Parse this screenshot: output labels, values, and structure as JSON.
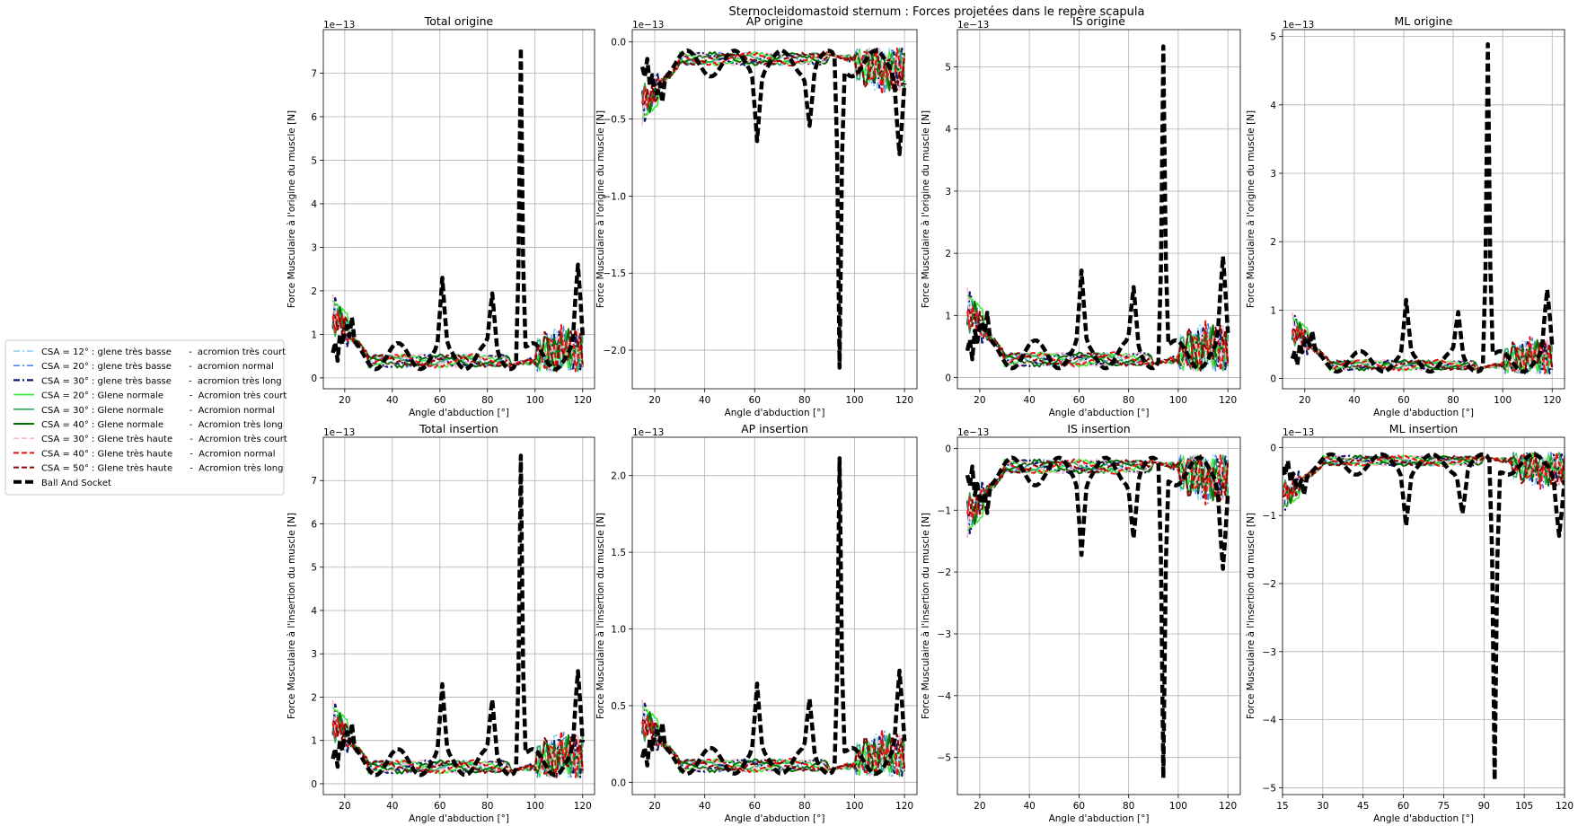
{
  "figure": {
    "suptitle": "Sternocleidomastoid sternum : Forces projetées dans le repère scapula"
  },
  "legend": {
    "placement": "left",
    "entries": [
      {
        "label": "CSA = 12° : glene très basse      -  acromion très court",
        "color": "#87CEFA",
        "dash": "7,3,2,3",
        "width": 1.6
      },
      {
        "label": "CSA = 20° : glene très basse      -  acromion normal",
        "color": "#4F86E0",
        "dash": "7,3,2,3",
        "width": 1.6
      },
      {
        "label": "CSA = 30° : glene très basse      -  acromion très long",
        "color": "#0A1A6E",
        "dash": "7,3,2,3",
        "width": 2.2
      },
      {
        "label": "CSA = 20° : Glene normale         -  Acromion très court",
        "color": "#33EE33",
        "dash": "",
        "width": 1.6
      },
      {
        "label": "CSA = 30° : Glene normale         -  Acromion normal",
        "color": "#2EAA55",
        "dash": "",
        "width": 1.6
      },
      {
        "label": "CSA = 40° : Glene normale         -  Acromion très long",
        "color": "#056B05",
        "dash": "",
        "width": 2.0
      },
      {
        "label": "CSA = 30° : Glene très haute      -  Acromion très court",
        "color": "#FFB6C1",
        "dash": "6,3",
        "width": 1.6
      },
      {
        "label": "CSA = 40° : Glene très haute      -  Acromion normal",
        "color": "#EE1111",
        "dash": "6,3",
        "width": 2.0
      },
      {
        "label": "CSA = 50° : Glene très haute      -  Acromion très long",
        "color": "#8B0000",
        "dash": "6,3",
        "width": 2.0
      },
      {
        "label": "Ball And Socket",
        "color": "#000000",
        "dash": "9,4",
        "width": 4.5
      }
    ]
  },
  "chart_data": [
    {
      "type": "line",
      "title": "Total origine",
      "xlabel": "Angle d'abduction [°]",
      "ylabel": "Force Musculaire à l'origine du muscle [N]",
      "scale_label": "1e−13",
      "xlim": [
        11,
        125
      ],
      "ylim": [
        -0.25,
        8.0
      ],
      "xticks": [
        20,
        40,
        60,
        80,
        100,
        120
      ],
      "yticks": [
        0,
        1,
        2,
        3,
        4,
        5,
        6,
        7
      ],
      "yticklabels": [
        "0",
        "1",
        "2",
        "3",
        "4",
        "5",
        "6",
        "7"
      ],
      "x_range": [
        15,
        120
      ],
      "sign": 1,
      "amp": 1.0,
      "ball_and_socket_peak": 7.6,
      "grid": true
    },
    {
      "type": "line",
      "title": "AP origine",
      "xlabel": "Angle d'abduction [°]",
      "ylabel": "Force Musculaire à l'origine du muscle [N]",
      "scale_label": "1e−13",
      "xlim": [
        11,
        125
      ],
      "ylim": [
        -2.25,
        0.08
      ],
      "xticks": [
        20,
        40,
        60,
        80,
        100,
        120
      ],
      "yticks": [
        0,
        -0.5,
        -1.0,
        -1.5,
        -2.0
      ],
      "yticklabels": [
        "0.0",
        "−0.5",
        "−1.0",
        "−1.5",
        "−2.0"
      ],
      "x_range": [
        15,
        120
      ],
      "sign": -1,
      "amp": 0.28,
      "ball_and_socket_peak": 2.12,
      "grid": true
    },
    {
      "type": "line",
      "title": "IS origine",
      "xlabel": "Angle d'abduction [°]",
      "ylabel": "Force Musculaire à l'origine du muscle [N]",
      "scale_label": "1e−13",
      "xlim": [
        11,
        125
      ],
      "ylim": [
        -0.18,
        5.6
      ],
      "xticks": [
        20,
        40,
        60,
        80,
        100,
        120
      ],
      "yticks": [
        0,
        1,
        2,
        3,
        4,
        5
      ],
      "yticklabels": [
        "0",
        "1",
        "2",
        "3",
        "4",
        "5"
      ],
      "x_range": [
        15,
        120
      ],
      "sign": 1,
      "amp": 0.75,
      "ball_and_socket_peak": 5.35,
      "grid": true
    },
    {
      "type": "line",
      "title": "ML origine",
      "xlabel": "Angle d'abduction [°]",
      "ylabel": "Force Musculaire à l'origine du muscle [N]",
      "scale_label": "1e−13",
      "xlim": [
        11,
        125
      ],
      "ylim": [
        -0.15,
        5.1
      ],
      "xticks": [
        20,
        40,
        60,
        80,
        100,
        120
      ],
      "yticks": [
        0,
        1,
        2,
        3,
        4,
        5
      ],
      "yticklabels": [
        "0",
        "1",
        "2",
        "3",
        "4",
        "5"
      ],
      "x_range": [
        15,
        120
      ],
      "sign": 1,
      "amp": 0.5,
      "ball_and_socket_peak": 4.9,
      "grid": true
    },
    {
      "type": "line",
      "title": "Total insertion",
      "xlabel": "Angle d'abduction [°]",
      "ylabel": "Force Musculaire à l'insertion du muscle [N]",
      "scale_label": "1e−13",
      "xlim": [
        11,
        125
      ],
      "ylim": [
        -0.25,
        8.0
      ],
      "xticks": [
        20,
        40,
        60,
        80,
        100,
        120
      ],
      "yticks": [
        0,
        1,
        2,
        3,
        4,
        5,
        6,
        7
      ],
      "yticklabels": [
        "0",
        "1",
        "2",
        "3",
        "4",
        "5",
        "6",
        "7"
      ],
      "x_range": [
        15,
        120
      ],
      "sign": 1,
      "amp": 1.0,
      "ball_and_socket_peak": 7.6,
      "grid": true
    },
    {
      "type": "line",
      "title": "AP insertion",
      "xlabel": "Angle d'abduction [°]",
      "ylabel": "Force Musculaire à l'insertion du muscle [N]",
      "scale_label": "1e−13",
      "xlim": [
        11,
        125
      ],
      "ylim": [
        -0.08,
        2.25
      ],
      "xticks": [
        20,
        40,
        60,
        80,
        100,
        120
      ],
      "yticks": [
        0,
        0.5,
        1.0,
        1.5,
        2.0
      ],
      "yticklabels": [
        "0.0",
        "0.5",
        "1.0",
        "1.5",
        "2.0"
      ],
      "x_range": [
        15,
        120
      ],
      "sign": 1,
      "amp": 0.28,
      "ball_and_socket_peak": 2.12,
      "grid": true
    },
    {
      "type": "line",
      "title": "IS insertion",
      "xlabel": "Angle d'abduction [°]",
      "ylabel": "Force Musculaire à l'insertion du muscle [N]",
      "scale_label": "1e−13",
      "xlim": [
        11,
        125
      ],
      "ylim": [
        -5.6,
        0.18
      ],
      "xticks": [
        20,
        40,
        60,
        80,
        100,
        120
      ],
      "yticks": [
        0,
        -1,
        -2,
        -3,
        -4,
        -5
      ],
      "yticklabels": [
        "0",
        "−1",
        "−2",
        "−3",
        "−4",
        "−5"
      ],
      "x_range": [
        15,
        120
      ],
      "sign": -1,
      "amp": 0.75,
      "ball_and_socket_peak": 5.35,
      "grid": true
    },
    {
      "type": "line",
      "title": "ML insertion",
      "xlabel": "Angle d'abduction [°]",
      "ylabel": "Force Musculaire à l'insertion du muscle [N]",
      "scale_label": "1e−13",
      "xlim": [
        15,
        120
      ],
      "ylim": [
        -5.1,
        0.15
      ],
      "xticks": [
        15,
        30,
        45,
        60,
        75,
        90,
        105,
        120
      ],
      "yticks": [
        0,
        -1,
        -2,
        -3,
        -4,
        -5
      ],
      "yticklabels": [
        "0",
        "−1",
        "−2",
        "−3",
        "−4",
        "−5"
      ],
      "x_range": [
        15,
        120
      ],
      "sign": -1,
      "amp": 0.5,
      "ball_and_socket_peak": 4.9,
      "grid": true
    }
  ]
}
